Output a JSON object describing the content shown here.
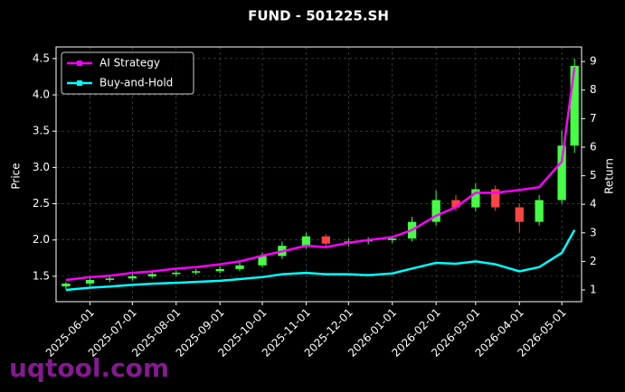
{
  "chart_data": {
    "type": "candlestick",
    "title": "FUND - 501225.SH",
    "ylabel": "Price",
    "y2label": "Return",
    "x": [
      "2025-05-15",
      "2025-06-01",
      "2025-06-15",
      "2025-07-01",
      "2025-07-15",
      "2025-08-01",
      "2025-08-15",
      "2025-09-01",
      "2025-09-15",
      "2025-10-01",
      "2025-10-15",
      "2025-11-01",
      "2025-11-15",
      "2025-12-01",
      "2025-12-15",
      "2026-01-01",
      "2026-01-15",
      "2026-02-01",
      "2026-02-15",
      "2026-03-01",
      "2026-03-15",
      "2026-04-01",
      "2026-04-15",
      "2026-05-01",
      "2026-05-10"
    ],
    "open": [
      1.36,
      1.4,
      1.45,
      1.47,
      1.5,
      1.53,
      1.55,
      1.57,
      1.6,
      1.65,
      1.78,
      1.92,
      2.05,
      1.95,
      1.98,
      2.0,
      2.02,
      2.25,
      2.55,
      2.45,
      2.7,
      2.45,
      2.25,
      2.55,
      3.3
    ],
    "high": [
      1.42,
      1.48,
      1.5,
      1.53,
      1.56,
      1.58,
      1.6,
      1.64,
      1.7,
      1.83,
      1.98,
      2.1,
      2.08,
      2.02,
      2.04,
      2.06,
      2.32,
      2.68,
      2.62,
      2.78,
      2.75,
      2.5,
      2.62,
      3.5,
      4.5
    ],
    "low": [
      1.32,
      1.37,
      1.42,
      1.44,
      1.47,
      1.5,
      1.52,
      1.54,
      1.57,
      1.62,
      1.74,
      1.88,
      1.9,
      1.91,
      1.94,
      1.96,
      1.98,
      2.2,
      2.4,
      2.4,
      2.4,
      2.1,
      2.2,
      2.5,
      3.2
    ],
    "close": [
      1.4,
      1.45,
      1.47,
      1.5,
      1.53,
      1.55,
      1.57,
      1.6,
      1.65,
      1.78,
      1.92,
      2.05,
      1.95,
      1.98,
      2.0,
      2.02,
      2.25,
      2.55,
      2.45,
      2.7,
      2.45,
      2.25,
      2.55,
      3.3,
      4.4
    ],
    "up_color": "#44ff44",
    "down_color": "#ff4444",
    "series": [
      {
        "name": "AI Strategy",
        "color": "#ff00ff",
        "axis": "y2",
        "values": [
          1.35,
          1.45,
          1.5,
          1.6,
          1.65,
          1.75,
          1.8,
          1.9,
          2.0,
          2.2,
          2.35,
          2.55,
          2.5,
          2.65,
          2.75,
          2.85,
          3.1,
          3.6,
          3.9,
          4.4,
          4.4,
          4.5,
          4.6,
          5.5,
          8.8
        ]
      },
      {
        "name": "Buy-and-Hold",
        "color": "#00ffff",
        "axis": "y2",
        "values": [
          1.0,
          1.08,
          1.12,
          1.18,
          1.22,
          1.25,
          1.28,
          1.32,
          1.38,
          1.45,
          1.55,
          1.6,
          1.55,
          1.55,
          1.52,
          1.58,
          1.75,
          1.95,
          1.92,
          2.0,
          1.9,
          1.65,
          1.8,
          2.3,
          3.1
        ]
      }
    ],
    "xlim": [
      "2025-05-08",
      "2026-05-15"
    ],
    "xticks": [
      "2025-06-01",
      "2025-07-01",
      "2025-08-01",
      "2025-09-01",
      "2025-10-01",
      "2025-11-01",
      "2025-12-01",
      "2026-01-01",
      "2026-02-01",
      "2026-03-01",
      "2026-04-01",
      "2026-05-01"
    ],
    "ylim": [
      1.15,
      4.66
    ],
    "yticks": [
      1.5,
      {
        "value": 2,
        "label": "2.0"
      },
      2.5,
      {
        "value": 3,
        "label": "3.0"
      },
      3.5,
      {
        "value": 4,
        "label": "4.0"
      },
      4.5
    ],
    "y2lim": [
      0.59,
      9.51
    ],
    "y2ticks": [
      1,
      2,
      3,
      4,
      5,
      6,
      7,
      8,
      9
    ],
    "grid": true,
    "legend": "upper left"
  },
  "watermark": "uqtool.com"
}
